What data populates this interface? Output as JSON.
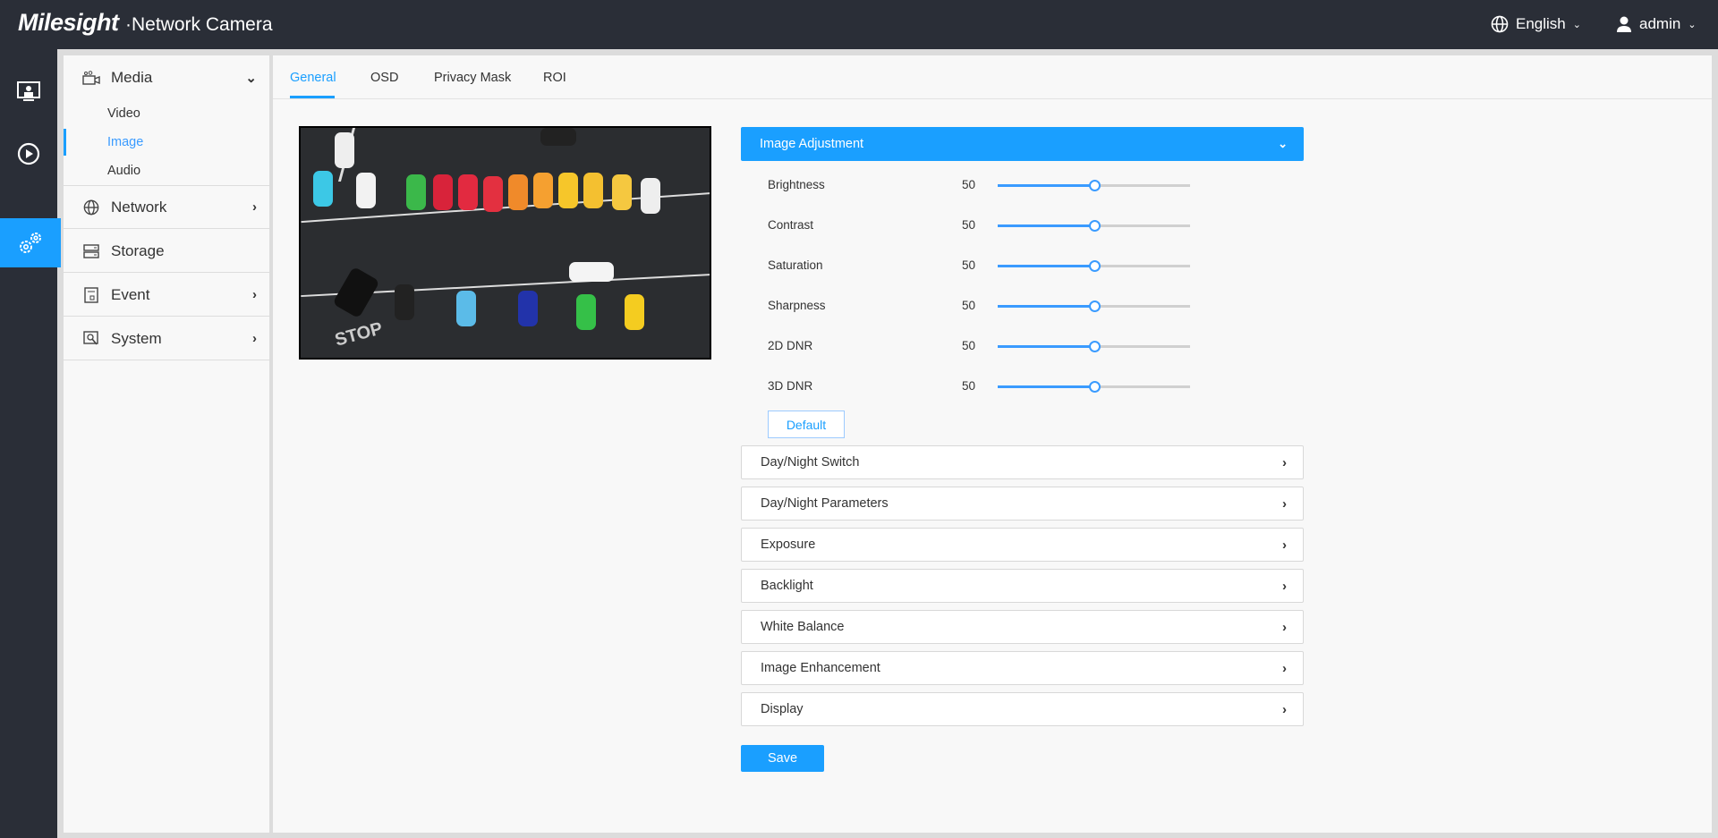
{
  "header": {
    "logo": "Milesight",
    "title": "·Network Camera",
    "language": "English",
    "user": "admin"
  },
  "colors": {
    "accent": "#1a9fff",
    "header_bg": "#2a2e37"
  },
  "rail": [
    {
      "icon": "live-view-icon"
    },
    {
      "icon": "playback-icon"
    },
    {
      "icon": "settings-icon",
      "active": true
    }
  ],
  "sidebar": {
    "media": {
      "label": "Media",
      "sub": [
        "Video",
        "Image",
        "Audio"
      ],
      "active": "Image"
    },
    "items": [
      {
        "label": "Network"
      },
      {
        "label": "Storage"
      },
      {
        "label": "Event"
      },
      {
        "label": "System"
      }
    ]
  },
  "tabs": [
    "General",
    "OSD",
    "Privacy Mask",
    "ROI"
  ],
  "active_tab": "General",
  "camera": {
    "overlay_text": "STOP"
  },
  "image_adjustment": {
    "title": "Image Adjustment",
    "sliders": [
      {
        "label": "Brightness",
        "value": "50",
        "percent": 50
      },
      {
        "label": "Contrast",
        "value": "50",
        "percent": 50
      },
      {
        "label": "Saturation",
        "value": "50",
        "percent": 50
      },
      {
        "label": "Sharpness",
        "value": "50",
        "percent": 50
      },
      {
        "label": "2D DNR",
        "value": "50",
        "percent": 50
      },
      {
        "label": "3D DNR",
        "value": "50",
        "percent": 50
      }
    ],
    "default_label": "Default"
  },
  "sections": [
    "Day/Night Switch",
    "Day/Night Parameters",
    "Exposure",
    "Backlight",
    "White Balance",
    "Image Enhancement",
    "Display"
  ],
  "save_label": "Save"
}
